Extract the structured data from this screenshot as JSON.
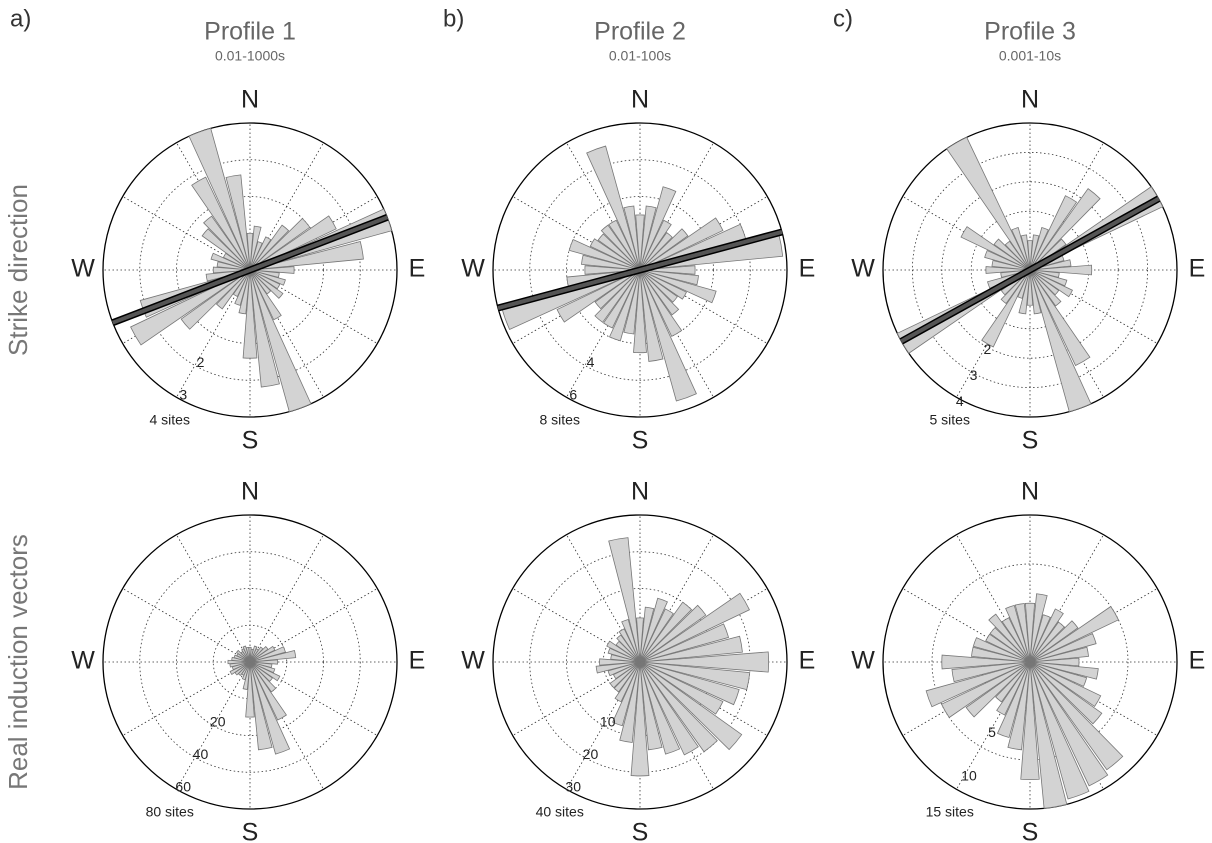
{
  "panels": [
    {
      "label": "a)",
      "title": "Profile 1",
      "subtitle": "0.01-1000s"
    },
    {
      "label": "b)",
      "title": "Profile 2",
      "subtitle": "0.01-100s"
    },
    {
      "label": "c)",
      "title": "Profile 3",
      "subtitle": "0.001-10s"
    }
  ],
  "row_labels": [
    "Strike direction",
    "Real induction vectors"
  ],
  "compass": [
    "N",
    "E",
    "S",
    "W"
  ],
  "chart_data": [
    {
      "type": "rose",
      "color": "#d3d3d3",
      "grid": true,
      "angles": [
        0,
        10,
        20,
        30,
        40,
        50,
        60,
        70,
        80,
        90,
        100,
        110,
        120,
        130,
        140,
        150,
        160,
        170,
        180,
        190,
        200,
        210,
        220,
        230,
        240,
        250,
        260,
        270,
        280,
        290,
        300,
        310,
        320,
        330,
        340,
        350
      ],
      "values": [
        1.0,
        1.2,
        0.8,
        1.0,
        1.5,
        2.0,
        2.6,
        4.0,
        3.1,
        1.2,
        0.8,
        1.0,
        0.9,
        1.1,
        0.8,
        1.5,
        4.0,
        3.2,
        2.4,
        1.2,
        1.0,
        0.8,
        1.3,
        2.3,
        3.6,
        3.1,
        1.2,
        1.0,
        0.9,
        1.1,
        0.8,
        1.6,
        1.8,
        2.8,
        4.0,
        2.6
      ],
      "rlim": [
        0,
        4
      ],
      "rticks": [
        2,
        3,
        {
          "value": 4,
          "label": "4 sites"
        }
      ],
      "strike": 69
    },
    {
      "type": "rose",
      "color": "#d3d3d3",
      "grid": true,
      "angles": [
        0,
        10,
        20,
        30,
        40,
        50,
        60,
        70,
        80,
        90,
        100,
        110,
        120,
        130,
        140,
        150,
        160,
        170,
        180,
        190,
        200,
        210,
        220,
        230,
        240,
        250,
        260,
        270,
        280,
        290,
        300,
        310,
        320,
        330,
        340,
        350
      ],
      "values": [
        3.0,
        3.5,
        4.7,
        3.0,
        2.5,
        3.2,
        5.0,
        6.0,
        7.8,
        3.0,
        3.2,
        4.3,
        2.8,
        2.5,
        3.0,
        4.0,
        7.4,
        5.0,
        4.5,
        3.5,
        4.0,
        3.5,
        3.5,
        3.0,
        5.0,
        7.8,
        4.0,
        3.0,
        3.2,
        4.0,
        3.0,
        2.8,
        3.0,
        3.0,
        7.0,
        3.5
      ],
      "rlim": [
        0,
        8
      ],
      "rticks": [
        4,
        6,
        {
          "value": 8,
          "label": "8 sites"
        }
      ],
      "strike": 75
    },
    {
      "type": "rose",
      "color": "#d3d3d3",
      "grid": true,
      "angles": [
        0,
        10,
        20,
        30,
        40,
        50,
        60,
        70,
        80,
        90,
        100,
        110,
        120,
        130,
        140,
        150,
        160,
        170,
        180,
        190,
        200,
        210,
        220,
        230,
        240,
        250,
        260,
        270,
        280,
        290,
        300,
        310,
        320,
        330,
        340,
        350
      ],
      "values": [
        1.0,
        1.2,
        1.5,
        2.8,
        3.4,
        1.5,
        5.0,
        1.2,
        1.4,
        2.1,
        1.0,
        1.3,
        1.6,
        1.2,
        1.5,
        3.6,
        5.0,
        1.5,
        1.2,
        1.5,
        1.0,
        2.9,
        1.4,
        1.2,
        5.0,
        1.5,
        1.0,
        1.5,
        1.3,
        1.6,
        2.6,
        1.5,
        1.2,
        5.0,
        1.5,
        1.2
      ],
      "rlim": [
        0,
        5
      ],
      "rticks": [
        2,
        3,
        4,
        {
          "value": 5,
          "label": "5 sites"
        }
      ],
      "strike": 61
    },
    {
      "type": "rose",
      "color": "#d3d3d3",
      "grid": true,
      "angles": [
        0,
        10,
        20,
        30,
        40,
        50,
        60,
        70,
        80,
        90,
        100,
        110,
        120,
        130,
        140,
        150,
        160,
        170,
        180,
        190,
        200,
        210,
        220,
        230,
        240,
        250,
        260,
        270,
        280,
        290,
        300,
        310,
        320,
        330,
        340,
        350
      ],
      "values": [
        8,
        7,
        9,
        8,
        10,
        12,
        15,
        20,
        25,
        15,
        12,
        14,
        18,
        15,
        20,
        35,
        52,
        48,
        30,
        15,
        10,
        8,
        9,
        10,
        12,
        10,
        11,
        12,
        10,
        9,
        8,
        9,
        7,
        8,
        9,
        8
      ],
      "rlim": [
        0,
        80
      ],
      "rticks": [
        20,
        40,
        60,
        {
          "value": 80,
          "label": "80 sites"
        }
      ]
    },
    {
      "type": "rose",
      "color": "#d3d3d3",
      "grid": true,
      "angles": [
        0,
        10,
        20,
        30,
        40,
        50,
        60,
        70,
        80,
        90,
        100,
        110,
        120,
        130,
        140,
        150,
        160,
        170,
        180,
        190,
        200,
        210,
        220,
        230,
        240,
        250,
        260,
        270,
        280,
        290,
        300,
        310,
        320,
        330,
        340,
        350
      ],
      "values": [
        12,
        15,
        18,
        16,
        20,
        22,
        33,
        25,
        28,
        35,
        30,
        28,
        25,
        34,
        30,
        28,
        26,
        24,
        31,
        22,
        18,
        12,
        10,
        10,
        8,
        9,
        12,
        11,
        8,
        9,
        10,
        8,
        9,
        10,
        12,
        34
      ],
      "rlim": [
        0,
        40
      ],
      "rticks": [
        10,
        20,
        30,
        {
          "value": 40,
          "label": "40 sites"
        }
      ]
    },
    {
      "type": "rose",
      "color": "#d3d3d3",
      "grid": true,
      "angles": [
        0,
        10,
        20,
        30,
        40,
        50,
        60,
        70,
        80,
        90,
        100,
        110,
        120,
        130,
        140,
        150,
        160,
        170,
        180,
        190,
        200,
        210,
        220,
        230,
        240,
        250,
        260,
        270,
        280,
        290,
        300,
        310,
        320,
        330,
        340,
        350
      ],
      "values": [
        6,
        7,
        5,
        6,
        5,
        6,
        10,
        7,
        6,
        5,
        7,
        6,
        8,
        9,
        13.5,
        14,
        14.5,
        15,
        12,
        9,
        8,
        6,
        5,
        8,
        10,
        11,
        8,
        9,
        6,
        6,
        5,
        5,
        6,
        5,
        6,
        6
      ],
      "rlim": [
        0,
        15
      ],
      "rticks": [
        5,
        10,
        {
          "value": 15,
          "label": "15 sites"
        }
      ]
    }
  ]
}
